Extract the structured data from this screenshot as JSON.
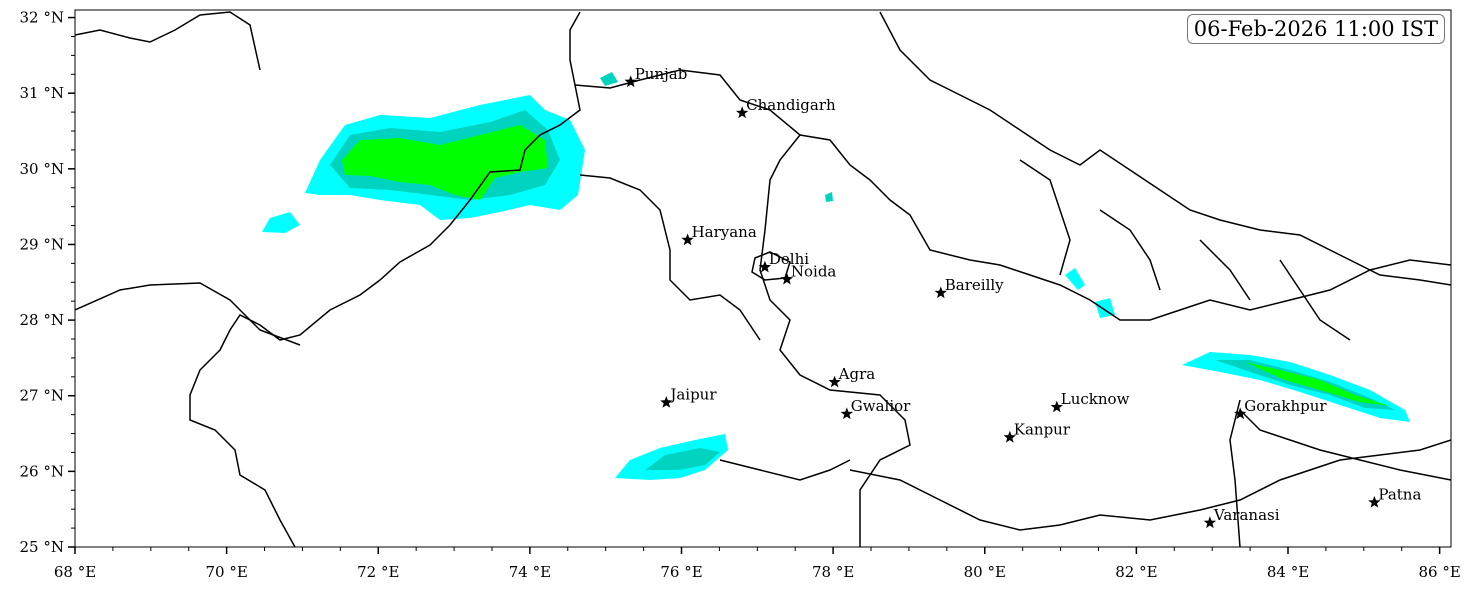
{
  "timestamp": "06-Feb-2026 11:00 IST",
  "axes": {
    "lon_ticks": [
      "68 °E",
      "70 °E",
      "72 °E",
      "74 °E",
      "76 °E",
      "78 °E",
      "80 °E",
      "82 °E",
      "84 °E",
      "86 °E"
    ],
    "lat_ticks": [
      "25 °N",
      "26 °N",
      "27 °N",
      "28 °N",
      "29 °N",
      "30 °N",
      "31 °N",
      "32 °N"
    ]
  },
  "cities": [
    {
      "name": "Punjab",
      "lon": 75.33,
      "lat": 31.15
    },
    {
      "name": "Chandigarh",
      "lon": 76.8,
      "lat": 30.74
    },
    {
      "name": "Haryana",
      "lon": 76.08,
      "lat": 29.06
    },
    {
      "name": "Delhi",
      "lon": 77.1,
      "lat": 28.7
    },
    {
      "name": "Noida",
      "lon": 77.39,
      "lat": 28.54
    },
    {
      "name": "Bareilly",
      "lon": 79.42,
      "lat": 28.36
    },
    {
      "name": "Agra",
      "lon": 78.02,
      "lat": 27.18
    },
    {
      "name": "Jaipur",
      "lon": 75.8,
      "lat": 26.91
    },
    {
      "name": "Gwalior",
      "lon": 78.18,
      "lat": 26.76
    },
    {
      "name": "Lucknow",
      "lon": 80.95,
      "lat": 26.85
    },
    {
      "name": "Kanpur",
      "lon": 80.33,
      "lat": 26.45
    },
    {
      "name": "Gorakhpur",
      "lon": 83.37,
      "lat": 26.76
    },
    {
      "name": "Patna",
      "lon": 85.14,
      "lat": 25.59
    },
    {
      "name": "Varanasi",
      "lon": 82.97,
      "lat": 25.32
    }
  ],
  "colors": {
    "precip_light": "#00ffff",
    "precip_moderate": "#00d4c0",
    "precip_heavy": "#00ff00",
    "boundary": "#000000"
  }
}
